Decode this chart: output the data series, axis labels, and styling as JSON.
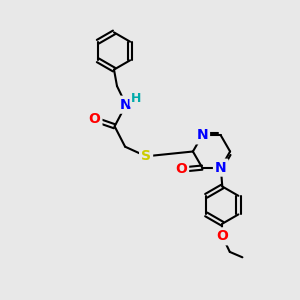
{
  "bg_color": "#e8e8e8",
  "bond_color": "#000000",
  "bond_width": 1.5,
  "atom_colors": {
    "N": "#0000ff",
    "O": "#ff0000",
    "S": "#cccc00",
    "H": "#00aaaa",
    "C": "#000000"
  },
  "font_size": 9
}
